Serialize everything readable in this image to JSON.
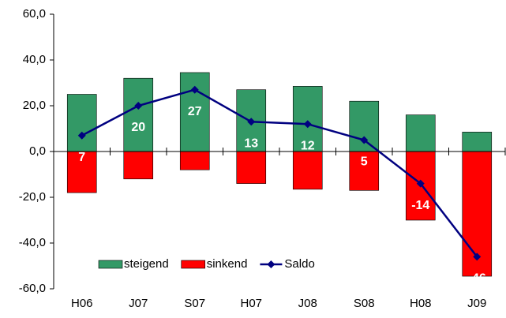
{
  "chart_data": {
    "type": "bar",
    "categories": [
      "H06",
      "J07",
      "S07",
      "H07",
      "J08",
      "S08",
      "H08",
      "J09"
    ],
    "series": [
      {
        "name": "steigend",
        "color": "#339966",
        "values": [
          25,
          32,
          34.5,
          27,
          28.5,
          22,
          16,
          8.5
        ]
      },
      {
        "name": "sinkend",
        "color": "#ff0000",
        "values": [
          -18,
          -12,
          -8,
          -14,
          -16.5,
          -17,
          -30,
          -54.5
        ]
      },
      {
        "name": "Saldo",
        "color": "#000080",
        "type": "line",
        "values": [
          7,
          20,
          27,
          13,
          12,
          5,
          -14,
          -46
        ]
      }
    ],
    "ylim": [
      -60,
      60
    ],
    "yticks": [
      {
        "value": -60,
        "label": "-60,0"
      },
      {
        "value": -40,
        "label": "-40,0"
      },
      {
        "value": -20,
        "label": "-20,0"
      },
      {
        "value": 0,
        "label": "0,0"
      },
      {
        "value": 20,
        "label": "20,0"
      },
      {
        "value": 40,
        "label": "40,0"
      },
      {
        "value": 60,
        "label": "60,0"
      }
    ],
    "legend": "lower-left",
    "grid": false
  }
}
